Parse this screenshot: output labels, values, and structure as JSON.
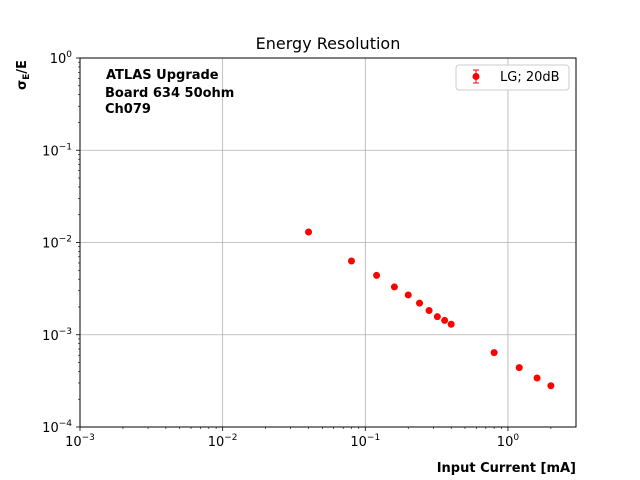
{
  "chart_data": {
    "type": "scatter",
    "title": "Energy Resolution",
    "xlabel": "Input Current [mA]",
    "ylabel_main": "σ",
    "ylabel_sub": "E",
    "ylabel_tail": "/E",
    "xscale": "log",
    "yscale": "log",
    "xlim": [
      0.001,
      3.0
    ],
    "ylim": [
      0.0001,
      1.0
    ],
    "grid": true,
    "x_ticks": [
      {
        "value": 0.001,
        "base": "10",
        "exp": "−3"
      },
      {
        "value": 0.01,
        "base": "10",
        "exp": "−2"
      },
      {
        "value": 0.1,
        "base": "10",
        "exp": "−1"
      },
      {
        "value": 1,
        "base": "10",
        "exp": "0"
      }
    ],
    "y_ticks": [
      {
        "value": 0.0001,
        "base": "10",
        "exp": "−4"
      },
      {
        "value": 0.001,
        "base": "10",
        "exp": "−3"
      },
      {
        "value": 0.01,
        "base": "10",
        "exp": "−2"
      },
      {
        "value": 0.1,
        "base": "10",
        "exp": "−1"
      },
      {
        "value": 1,
        "base": "10",
        "exp": "0"
      }
    ],
    "annotation_lines": [
      "ATLAS Upgrade",
      "Board 634 50ohm",
      "Ch079"
    ],
    "legend_position": "top-right",
    "series": [
      {
        "name": "LG; 20dB",
        "color": "#ff0000",
        "x": [
          0.04,
          0.08,
          0.12,
          0.16,
          0.2,
          0.24,
          0.28,
          0.32,
          0.36,
          0.4,
          0.8,
          1.2,
          1.6,
          2.0
        ],
        "y": [
          0.013,
          0.0063,
          0.0044,
          0.0033,
          0.0027,
          0.0022,
          0.00183,
          0.00157,
          0.00143,
          0.0013,
          0.00064,
          0.00044,
          0.00034,
          0.00028
        ]
      }
    ]
  }
}
